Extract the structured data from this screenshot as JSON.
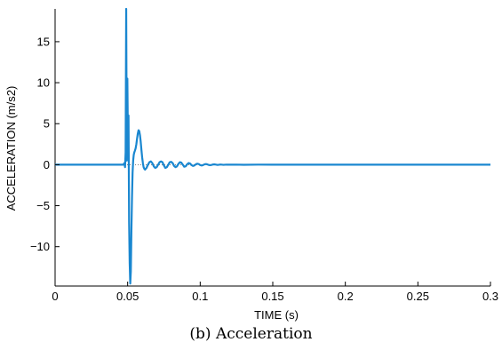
{
  "caption": "(b) Acceleration",
  "colors": {
    "series": "#1a87d0",
    "axis": "#000000",
    "zero_line": "#555555"
  },
  "chart_data": {
    "type": "line",
    "xlabel": "TIME (s)",
    "ylabel": "ACCELERATION (m/s2)",
    "xlim": [
      0,
      0.3
    ],
    "ylim": [
      -14.8,
      19
    ],
    "xticks": [
      0,
      0.05,
      0.1,
      0.15,
      0.2,
      0.25,
      0.3
    ],
    "xtick_labels": [
      "0",
      "0.05",
      "0.1",
      "0.15",
      "0.2",
      "0.25",
      "0.3"
    ],
    "yticks": [
      -10,
      -5,
      0,
      5,
      10,
      15
    ],
    "ytick_labels": [
      "−10",
      "−5",
      "0",
      "5",
      "10",
      "15"
    ],
    "grid": false,
    "series": [
      {
        "x": [
          0,
          0.047,
          0.0478,
          0.0482,
          0.0486,
          0.049,
          0.0494,
          0.0498,
          0.0502,
          0.0506,
          0.051,
          0.0514,
          0.0518,
          0.0522,
          0.0526,
          0.053,
          0.0534,
          0.0538,
          0.0542,
          0.0546,
          0.055,
          0.0555,
          0.056,
          0.0565,
          0.057,
          0.0575,
          0.058,
          0.0585,
          0.059,
          0.0595,
          0.06,
          0.0605,
          0.061,
          0.0615,
          0.062,
          0.063,
          0.064,
          0.065,
          0.066,
          0.067,
          0.068,
          0.069,
          0.07,
          0.071,
          0.072,
          0.073,
          0.074,
          0.075,
          0.076,
          0.077,
          0.078,
          0.079,
          0.08,
          0.081,
          0.082,
          0.083,
          0.084,
          0.085,
          0.086,
          0.087,
          0.088,
          0.089,
          0.09,
          0.091,
          0.092,
          0.093,
          0.094,
          0.095,
          0.096,
          0.097,
          0.098,
          0.099,
          0.1,
          0.101,
          0.102,
          0.103,
          0.104,
          0.105,
          0.106,
          0.107,
          0.108,
          0.109,
          0.11,
          0.112,
          0.114,
          0.116,
          0.118,
          0.12,
          0.125,
          0.13,
          0.14,
          0.15,
          0.16,
          0.2,
          0.25,
          0.3
        ],
        "y": [
          0,
          0,
          0.2,
          -0.3,
          1.5,
          19,
          0.5,
          10.5,
          3,
          6,
          -7,
          -12,
          -14.5,
          -13,
          -8,
          -4,
          -1,
          0.5,
          1.2,
          1.5,
          1.7,
          2,
          2.5,
          3.2,
          3.8,
          4.2,
          4.1,
          3.6,
          2.8,
          1.8,
          0.9,
          0.2,
          -0.3,
          -0.5,
          -0.6,
          -0.4,
          0,
          0.3,
          0.4,
          0.2,
          -0.2,
          -0.4,
          -0.3,
          0,
          0.3,
          0.4,
          0.3,
          -0.1,
          -0.4,
          -0.3,
          0,
          0.3,
          0.35,
          0.2,
          -0.15,
          -0.3,
          -0.2,
          0.1,
          0.3,
          0.25,
          0,
          -0.25,
          -0.2,
          0.05,
          0.2,
          0.15,
          -0.05,
          -0.15,
          -0.1,
          0.05,
          0.12,
          0.08,
          -0.05,
          -0.1,
          -0.05,
          0.05,
          0.08,
          0.03,
          -0.04,
          -0.06,
          -0.02,
          0.03,
          0.04,
          -0.03,
          0.02,
          -0.02,
          0.01,
          0,
          0.01,
          -0.01,
          0.01,
          0,
          0,
          0,
          0,
          0
        ]
      }
    ]
  }
}
